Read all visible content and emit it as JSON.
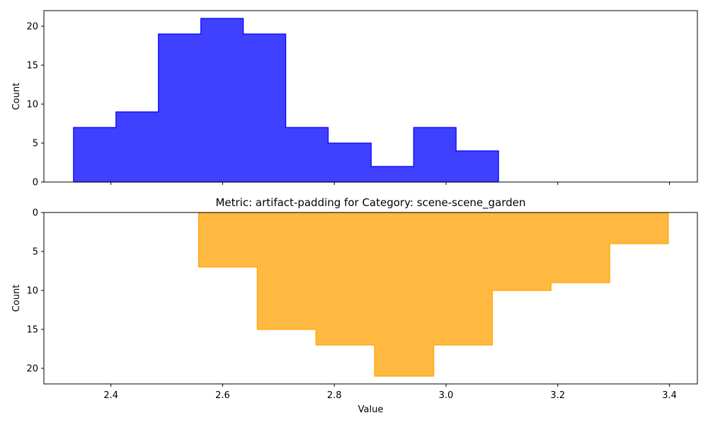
{
  "chart_data": [
    {
      "type": "histogram",
      "title": "",
      "xlabel": "",
      "ylabel": "Count",
      "xlim": [
        2.28,
        3.45
      ],
      "ylim": [
        0,
        22
      ],
      "y_inverted": false,
      "x_tick_labels_shown": false,
      "xticks": [
        2.4,
        2.6,
        2.8,
        3.0,
        3.2,
        3.4
      ],
      "yticks": [
        0,
        5,
        10,
        15,
        20
      ],
      "bin_edges": [
        2.333,
        2.409,
        2.485,
        2.561,
        2.637,
        2.713,
        2.789,
        2.866,
        2.942,
        3.018,
        3.094
      ],
      "counts": [
        7,
        9,
        19,
        21,
        19,
        7,
        5,
        2,
        7,
        4
      ],
      "fill_color": "#4040ff",
      "edge_color": "#0000ff"
    },
    {
      "type": "histogram",
      "title": "Metric: artifact-padding for Category: scene-scene_garden",
      "xlabel": "Value",
      "ylabel": "Count",
      "xlim": [
        2.28,
        3.45
      ],
      "ylim": [
        22,
        0
      ],
      "y_inverted": true,
      "x_tick_labels_shown": true,
      "xticks": [
        2.4,
        2.6,
        2.8,
        3.0,
        3.2,
        3.4
      ],
      "yticks": [
        0,
        5,
        10,
        15,
        20
      ],
      "bin_edges": [
        2.557,
        2.662,
        2.767,
        2.872,
        2.978,
        3.083,
        3.188,
        3.293,
        3.398
      ],
      "counts": [
        7,
        15,
        17,
        21,
        17,
        10,
        9,
        4
      ],
      "fill_color": "#ffb840",
      "edge_color": "#ffa500"
    }
  ]
}
